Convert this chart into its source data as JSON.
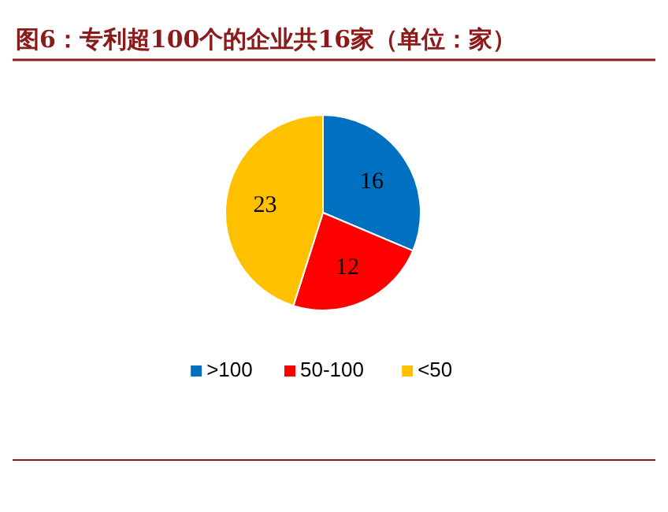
{
  "chart_data": {
    "type": "pie",
    "title": "图6：专利超100个的企业共16家（单位：家）",
    "categories": [
      ">100",
      "50-100",
      "<50"
    ],
    "values": [
      16,
      12,
      23
    ],
    "colors": [
      "#0070c0",
      "#ff0000",
      "#ffc000"
    ],
    "data_labels": true,
    "legend": "bottom"
  }
}
